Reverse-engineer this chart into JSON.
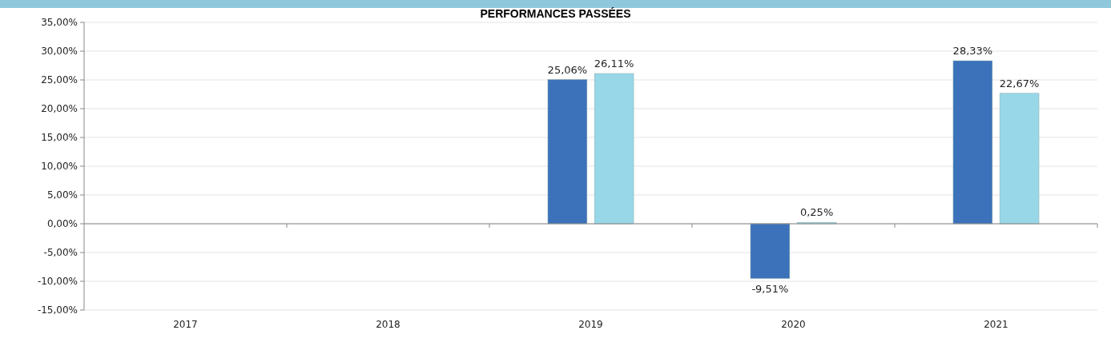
{
  "chart_data": {
    "type": "bar",
    "title": "PERFORMANCES PASSÉES",
    "categories": [
      "2017",
      "2018",
      "2019",
      "2020",
      "2021"
    ],
    "series": [
      {
        "color": "#3b72ba",
        "values": [
          null,
          null,
          25.06,
          -9.51,
          28.33
        ],
        "value_labels": [
          null,
          null,
          "25,06%",
          "-9,51%",
          "28,33%"
        ]
      },
      {
        "color": "#98d7e8",
        "values": [
          null,
          null,
          26.11,
          0.25,
          22.67
        ],
        "value_labels": [
          null,
          null,
          "26,11%",
          "0,25%",
          "22,67%"
        ]
      }
    ],
    "ylim": [
      -15,
      35
    ],
    "yticks": [
      {
        "value": -15,
        "label": "-15,00%"
      },
      {
        "value": -10,
        "label": "-10,00%"
      },
      {
        "value": -5,
        "label": "-5,00%"
      },
      {
        "value": 0,
        "label": "0,00%"
      },
      {
        "value": 5,
        "label": "5,00%"
      },
      {
        "value": 10,
        "label": "10,00%"
      },
      {
        "value": 15,
        "label": "15,00%"
      },
      {
        "value": 20,
        "label": "20,00%"
      },
      {
        "value": 25,
        "label": "25,00%"
      },
      {
        "value": 30,
        "label": "30,00%"
      },
      {
        "value": 35,
        "label": "35,00%"
      }
    ],
    "grid": "y"
  }
}
